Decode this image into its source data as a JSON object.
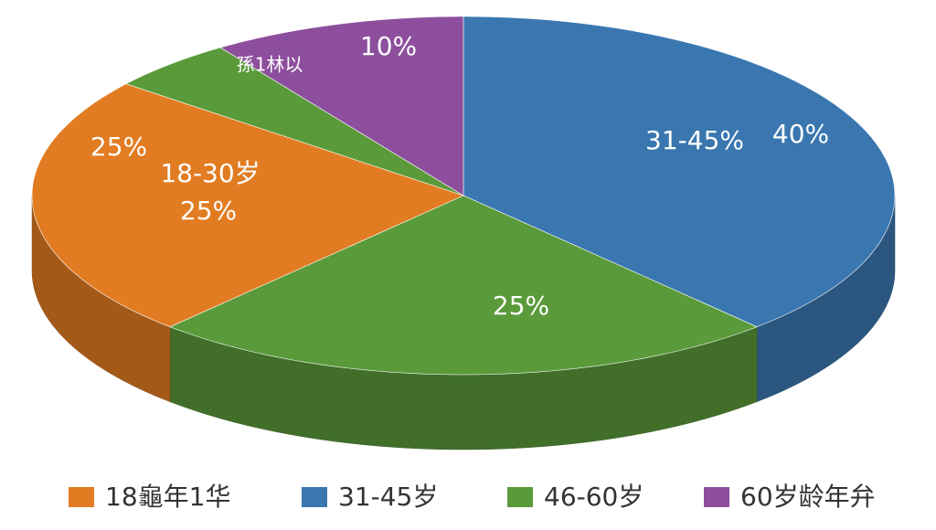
{
  "chart_data": {
    "type": "pie",
    "categories": [
      "31-45%",
      null,
      "18-30岁",
      "孫1林以",
      null
    ],
    "values": [
      40,
      25,
      25,
      5,
      10
    ],
    "value_labels": [
      "40%",
      "25%",
      "25%",
      null,
      "10%"
    ],
    "colors": [
      "#3a77b0",
      "#5a9a3a",
      "#e27c22",
      "#5a9a3a",
      "#8d4f9d"
    ],
    "annotations": [
      {
        "text": "25%"
      }
    ],
    "legend": [
      {
        "name": "18龜年1华",
        "color": "#e27c22"
      },
      {
        "name": "31-45岁",
        "color": "#3a77b0"
      },
      {
        "name": "46-60岁",
        "color": "#5a9a3a"
      },
      {
        "name": "60岁龄年弁",
        "color": "#8d4f9d"
      }
    ]
  }
}
